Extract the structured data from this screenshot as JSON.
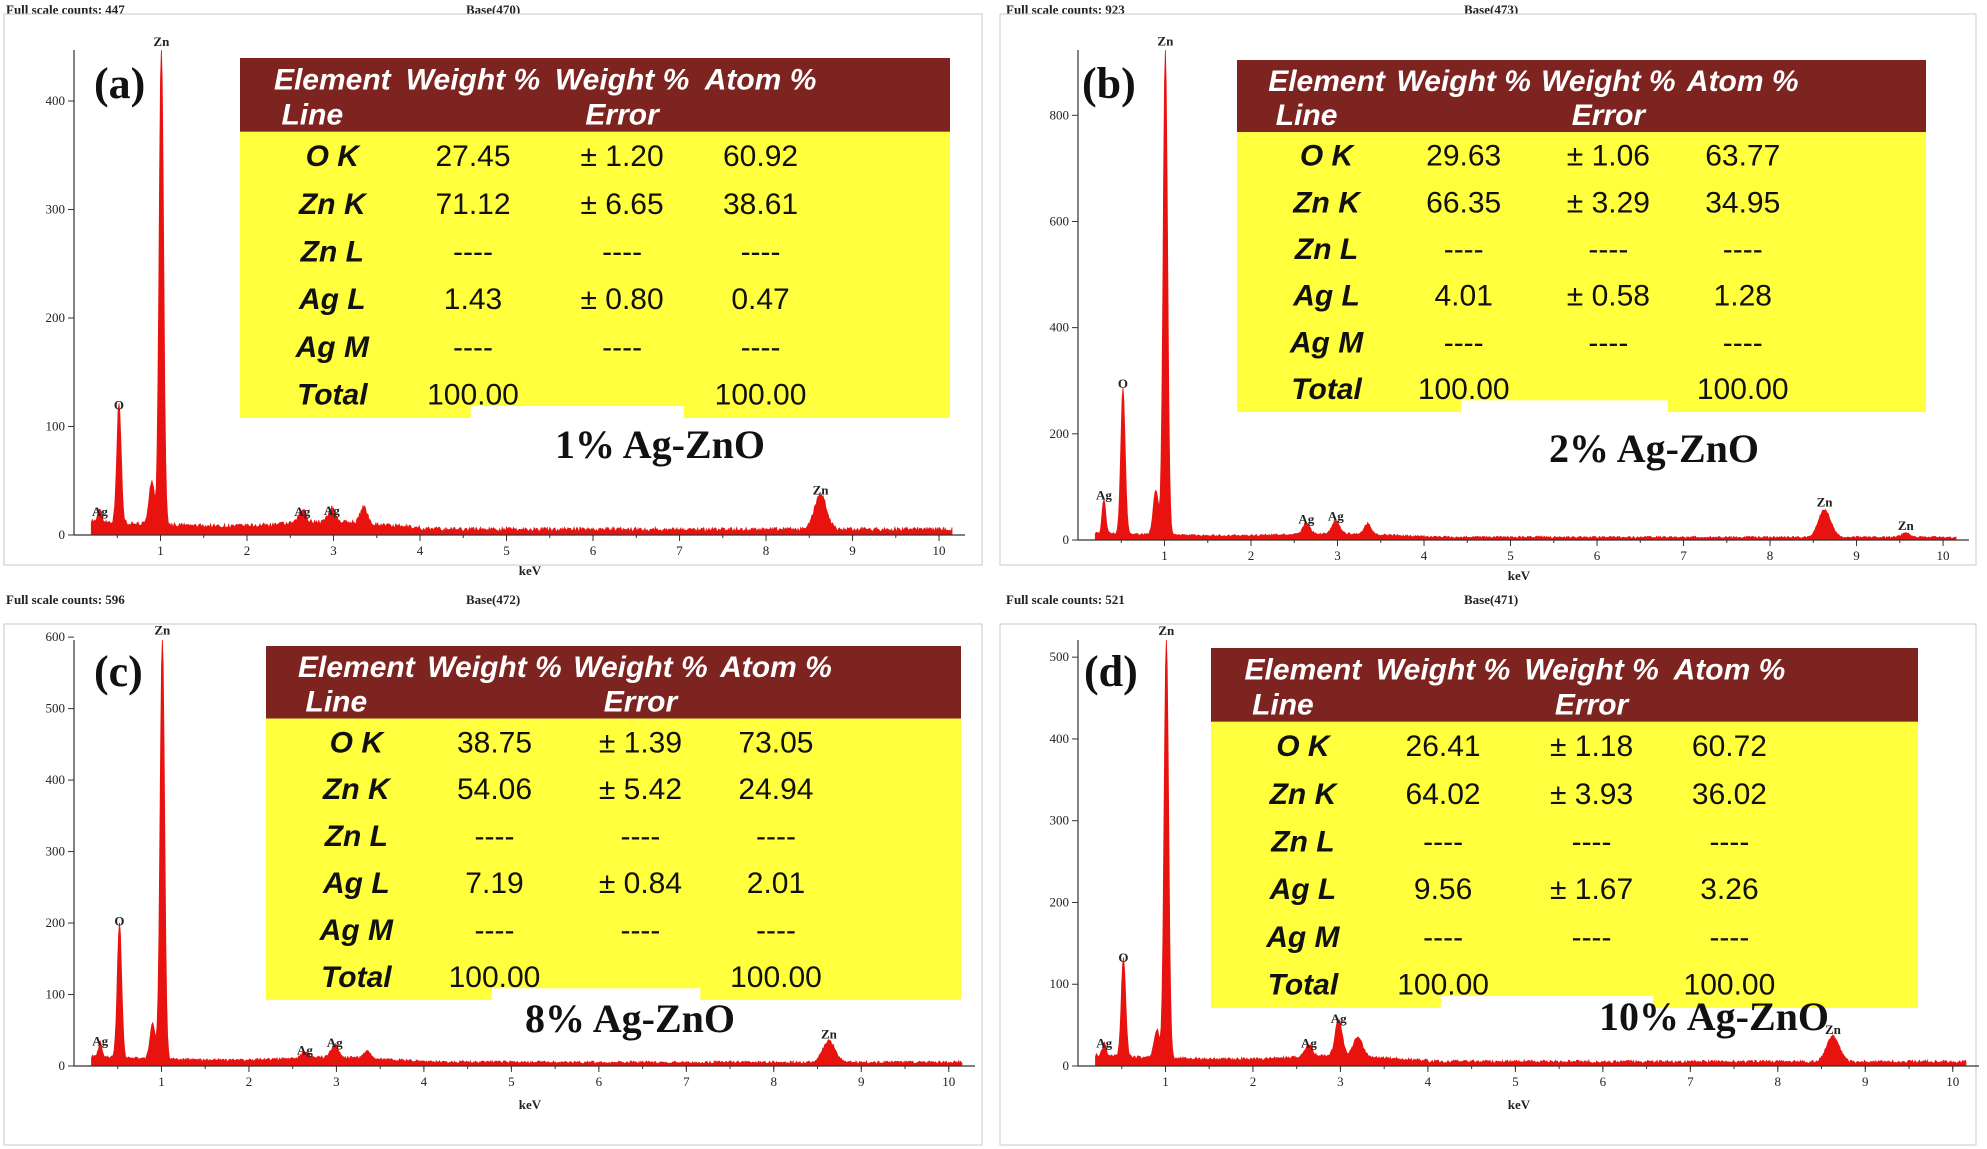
{
  "colors": {
    "spectrum": "#e8120f",
    "header_bg": "#7d2420",
    "table_bg": "#ffff3d"
  },
  "chart_data": [
    {
      "type": "line",
      "tag": "(a)",
      "scale_label": "Full scale counts: 447",
      "base_label": "Base(470)",
      "xlabel": "keV",
      "xlim": [
        0,
        10.3
      ],
      "ylim": [
        0,
        447
      ],
      "xticks": [
        1,
        2,
        3,
        4,
        5,
        6,
        7,
        8,
        9,
        10
      ],
      "yticks": [
        0,
        100,
        200,
        300,
        400
      ],
      "sample": "1% Ag-ZnO",
      "peaks": [
        {
          "label": "Ag",
          "x": 0.3,
          "y": 12,
          "w": 0.02
        },
        {
          "label": "O",
          "x": 0.52,
          "y": 110,
          "w": 0.025
        },
        {
          "label": "Zn",
          "x": 1.01,
          "y": 445,
          "w": 0.025
        },
        {
          "label": "Ag",
          "x": 2.64,
          "y": 12,
          "w": 0.04
        },
        {
          "label": "Ag",
          "x": 2.98,
          "y": 13,
          "w": 0.04
        },
        {
          "label": "Zn",
          "x": 8.63,
          "y": 32,
          "w": 0.07
        }
      ],
      "bumps": [
        {
          "x": 0.9,
          "y": 40,
          "w": 0.03
        },
        {
          "x": 3.35,
          "y": 15,
          "w": 0.04
        }
      ],
      "table": {
        "headers": [
          [
            "Element",
            "Line"
          ],
          [
            "Weight %",
            ""
          ],
          [
            "Weight %",
            "Error"
          ],
          [
            "Atom %",
            ""
          ]
        ],
        "rows": [
          [
            "O K",
            "27.45",
            "± 1.20",
            "60.92"
          ],
          [
            "Zn K",
            "71.12",
            "± 6.65",
            "38.61"
          ],
          [
            "Zn L",
            "----",
            "----",
            "----"
          ],
          [
            "Ag L",
            "1.43",
            "± 0.80",
            "0.47"
          ],
          [
            "Ag M",
            "----",
            "----",
            "----"
          ],
          [
            "Total",
            "100.00",
            "",
            "100.00"
          ]
        ]
      }
    },
    {
      "type": "line",
      "tag": "(b)",
      "scale_label": "Full scale counts: 923",
      "base_label": "Base(473)",
      "xlabel": "keV",
      "xlim": [
        0,
        10.3
      ],
      "ylim": [
        0,
        923
      ],
      "xticks": [
        1,
        2,
        3,
        4,
        5,
        6,
        7,
        8,
        9,
        10
      ],
      "yticks": [
        0,
        200,
        400,
        600,
        800
      ],
      "sample": "2% Ag-ZnO",
      "peaks": [
        {
          "label": "Ag",
          "x": 0.3,
          "y": 65,
          "w": 0.02
        },
        {
          "label": "O",
          "x": 0.52,
          "y": 275,
          "w": 0.025
        },
        {
          "label": "Zn",
          "x": 1.01,
          "y": 920,
          "w": 0.025
        },
        {
          "label": "Ag",
          "x": 2.64,
          "y": 20,
          "w": 0.04
        },
        {
          "label": "Ag",
          "x": 2.98,
          "y": 25,
          "w": 0.04
        },
        {
          "label": "Zn",
          "x": 8.63,
          "y": 52,
          "w": 0.07
        },
        {
          "label": "Zn",
          "x": 9.57,
          "y": 8,
          "w": 0.05
        }
      ],
      "bumps": [
        {
          "x": 0.9,
          "y": 85,
          "w": 0.03
        },
        {
          "x": 3.35,
          "y": 20,
          "w": 0.04
        }
      ],
      "table": {
        "headers": [
          [
            "Element",
            "Line"
          ],
          [
            "Weight %",
            ""
          ],
          [
            "Weight %",
            "Error"
          ],
          [
            "Atom %",
            ""
          ]
        ],
        "rows": [
          [
            "O K",
            "29.63",
            "± 1.06",
            "63.77"
          ],
          [
            "Zn K",
            "66.35",
            "± 3.29",
            "34.95"
          ],
          [
            "Zn L",
            "----",
            "----",
            "----"
          ],
          [
            "Ag L",
            "4.01",
            "± 0.58",
            "1.28"
          ],
          [
            "Ag M",
            "----",
            "----",
            "----"
          ],
          [
            "Total",
            "100.00",
            "",
            "100.00"
          ]
        ]
      }
    },
    {
      "type": "line",
      "tag": "(c)",
      "scale_label": "Full scale counts: 596",
      "base_label": "Base(472)",
      "xlabel": "keV",
      "xlim": [
        0,
        10.3
      ],
      "ylim": [
        0,
        596
      ],
      "xticks": [
        1,
        2,
        3,
        4,
        5,
        6,
        7,
        8,
        9,
        10
      ],
      "yticks": [
        0,
        100,
        200,
        300,
        400,
        500,
        600
      ],
      "sample": "8% Ag-ZnO",
      "peaks": [
        {
          "label": "Ag",
          "x": 0.3,
          "y": 20,
          "w": 0.02
        },
        {
          "label": "O",
          "x": 0.52,
          "y": 188,
          "w": 0.025
        },
        {
          "label": "Zn",
          "x": 1.01,
          "y": 595,
          "w": 0.025
        },
        {
          "label": "Ag",
          "x": 2.64,
          "y": 8,
          "w": 0.04
        },
        {
          "label": "Ag",
          "x": 2.98,
          "y": 18,
          "w": 0.04
        },
        {
          "label": "Zn",
          "x": 8.63,
          "y": 30,
          "w": 0.07
        }
      ],
      "bumps": [
        {
          "x": 0.9,
          "y": 50,
          "w": 0.03
        },
        {
          "x": 3.35,
          "y": 10,
          "w": 0.04
        }
      ],
      "table": {
        "headers": [
          [
            "Element",
            "Line"
          ],
          [
            "Weight %",
            ""
          ],
          [
            "Weight %",
            "Error"
          ],
          [
            "Atom %",
            ""
          ]
        ],
        "rows": [
          [
            "O K",
            "38.75",
            "± 1.39",
            "73.05"
          ],
          [
            "Zn K",
            "54.06",
            "± 5.42",
            "24.94"
          ],
          [
            "Zn L",
            "----",
            "----",
            "----"
          ],
          [
            "Ag L",
            "7.19",
            "± 0.84",
            "2.01"
          ],
          [
            "Ag M",
            "----",
            "----",
            "----"
          ],
          [
            "Total",
            "100.00",
            "",
            "100.00"
          ]
        ]
      }
    },
    {
      "type": "line",
      "tag": "(d)",
      "scale_label": "Full scale counts: 521",
      "base_label": "Base(471)",
      "xlabel": "keV",
      "xlim": [
        0,
        10.3
      ],
      "ylim": [
        0,
        521
      ],
      "xticks": [
        1,
        2,
        3,
        4,
        5,
        6,
        7,
        8,
        9,
        10
      ],
      "yticks": [
        0,
        100,
        200,
        300,
        400,
        500
      ],
      "sample": "10% Ag-ZnO",
      "peaks": [
        {
          "label": "Ag",
          "x": 0.3,
          "y": 15,
          "w": 0.02
        },
        {
          "label": "O",
          "x": 0.52,
          "y": 120,
          "w": 0.025
        },
        {
          "label": "Zn",
          "x": 1.01,
          "y": 520,
          "w": 0.025
        },
        {
          "label": "Ag",
          "x": 2.64,
          "y": 15,
          "w": 0.04
        },
        {
          "label": "Ag",
          "x": 2.98,
          "y": 45,
          "w": 0.04
        },
        {
          "label": "Zn",
          "x": 8.63,
          "y": 32,
          "w": 0.07
        }
      ],
      "bumps": [
        {
          "x": 0.9,
          "y": 35,
          "w": 0.03
        },
        {
          "x": 3.2,
          "y": 25,
          "w": 0.05
        }
      ],
      "table": {
        "headers": [
          [
            "Element",
            "Line"
          ],
          [
            "Weight %",
            ""
          ],
          [
            "Weight %",
            "Error"
          ],
          [
            "Atom %",
            ""
          ]
        ],
        "rows": [
          [
            "O K",
            "26.41",
            "± 1.18",
            "60.72"
          ],
          [
            "Zn K",
            "64.02",
            "± 3.93",
            "36.02"
          ],
          [
            "Zn L",
            "----",
            "----",
            "----"
          ],
          [
            "Ag L",
            "9.56",
            "± 1.67",
            "3.26"
          ],
          [
            "Ag M",
            "----",
            "----",
            "----"
          ],
          [
            "Total",
            "100.00",
            "",
            "100.00"
          ]
        ]
      }
    }
  ]
}
